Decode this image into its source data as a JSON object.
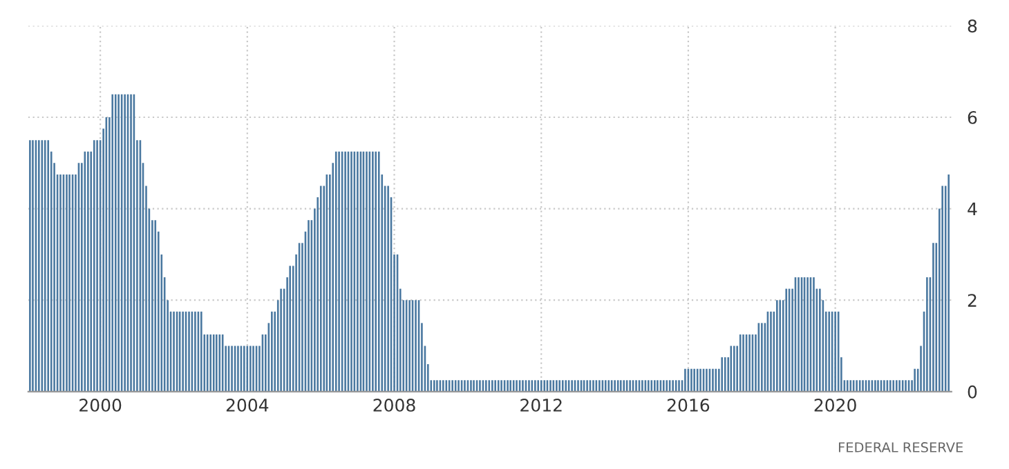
{
  "chart_data": {
    "type": "bar",
    "color": "#4a78a0",
    "x": [
      "1998-02",
      "1998-03",
      "1998-04",
      "1998-05",
      "1998-06",
      "1998-07",
      "1998-08",
      "1998-09",
      "1998-10",
      "1998-11",
      "1998-12",
      "1999-01",
      "1999-02",
      "1999-03",
      "1999-04",
      "1999-05",
      "1999-06",
      "1999-07",
      "1999-08",
      "1999-09",
      "1999-10",
      "1999-11",
      "1999-12",
      "2000-01",
      "2000-02",
      "2000-03",
      "2000-04",
      "2000-05",
      "2000-06",
      "2000-07",
      "2000-08",
      "2000-09",
      "2000-10",
      "2000-11",
      "2000-12",
      "2001-01",
      "2001-02",
      "2001-03",
      "2001-04",
      "2001-05",
      "2001-06",
      "2001-07",
      "2001-08",
      "2001-09",
      "2001-10",
      "2001-11",
      "2001-12",
      "2002-01",
      "2002-02",
      "2002-03",
      "2002-04",
      "2002-05",
      "2002-06",
      "2002-07",
      "2002-08",
      "2002-09",
      "2002-10",
      "2002-11",
      "2002-12",
      "2003-01",
      "2003-02",
      "2003-03",
      "2003-04",
      "2003-05",
      "2003-06",
      "2003-07",
      "2003-08",
      "2003-09",
      "2003-10",
      "2003-11",
      "2003-12",
      "2004-01",
      "2004-02",
      "2004-03",
      "2004-04",
      "2004-05",
      "2004-06",
      "2004-07",
      "2004-08",
      "2004-09",
      "2004-10",
      "2004-11",
      "2004-12",
      "2005-01",
      "2005-02",
      "2005-03",
      "2005-04",
      "2005-05",
      "2005-06",
      "2005-07",
      "2005-08",
      "2005-09",
      "2005-10",
      "2005-11",
      "2005-12",
      "2006-01",
      "2006-02",
      "2006-03",
      "2006-04",
      "2006-05",
      "2006-06",
      "2006-07",
      "2006-08",
      "2006-09",
      "2006-10",
      "2006-11",
      "2006-12",
      "2007-01",
      "2007-02",
      "2007-03",
      "2007-04",
      "2007-05",
      "2007-06",
      "2007-07",
      "2007-08",
      "2007-09",
      "2007-10",
      "2007-11",
      "2007-12",
      "2008-01",
      "2008-02",
      "2008-03",
      "2008-04",
      "2008-05",
      "2008-06",
      "2008-07",
      "2008-08",
      "2008-09",
      "2008-10",
      "2008-11",
      "2008-12",
      "2009-01",
      "2009-02",
      "2009-03",
      "2009-04",
      "2009-05",
      "2009-06",
      "2009-07",
      "2009-08",
      "2009-09",
      "2009-10",
      "2009-11",
      "2009-12",
      "2010-01",
      "2010-02",
      "2010-03",
      "2010-04",
      "2010-05",
      "2010-06",
      "2010-07",
      "2010-08",
      "2010-09",
      "2010-10",
      "2010-11",
      "2010-12",
      "2011-01",
      "2011-02",
      "2011-03",
      "2011-04",
      "2011-05",
      "2011-06",
      "2011-07",
      "2011-08",
      "2011-09",
      "2011-10",
      "2011-11",
      "2011-12",
      "2012-01",
      "2012-02",
      "2012-03",
      "2012-04",
      "2012-05",
      "2012-06",
      "2012-07",
      "2012-08",
      "2012-09",
      "2012-10",
      "2012-11",
      "2012-12",
      "2013-01",
      "2013-02",
      "2013-03",
      "2013-04",
      "2013-05",
      "2013-06",
      "2013-07",
      "2013-08",
      "2013-09",
      "2013-10",
      "2013-11",
      "2013-12",
      "2014-01",
      "2014-02",
      "2014-03",
      "2014-04",
      "2014-05",
      "2014-06",
      "2014-07",
      "2014-08",
      "2014-09",
      "2014-10",
      "2014-11",
      "2014-12",
      "2015-01",
      "2015-02",
      "2015-03",
      "2015-04",
      "2015-05",
      "2015-06",
      "2015-07",
      "2015-08",
      "2015-09",
      "2015-10",
      "2015-11",
      "2015-12",
      "2016-01",
      "2016-02",
      "2016-03",
      "2016-04",
      "2016-05",
      "2016-06",
      "2016-07",
      "2016-08",
      "2016-09",
      "2016-10",
      "2016-11",
      "2016-12",
      "2017-01",
      "2017-02",
      "2017-03",
      "2017-04",
      "2017-05",
      "2017-06",
      "2017-07",
      "2017-08",
      "2017-09",
      "2017-10",
      "2017-11",
      "2017-12",
      "2018-01",
      "2018-02",
      "2018-03",
      "2018-04",
      "2018-05",
      "2018-06",
      "2018-07",
      "2018-08",
      "2018-09",
      "2018-10",
      "2018-11",
      "2018-12",
      "2019-01",
      "2019-02",
      "2019-03",
      "2019-04",
      "2019-05",
      "2019-06",
      "2019-07",
      "2019-08",
      "2019-09",
      "2019-10",
      "2019-11",
      "2019-12",
      "2020-01",
      "2020-02",
      "2020-03",
      "2020-04",
      "2020-05",
      "2020-06",
      "2020-07",
      "2020-08",
      "2020-09",
      "2020-10",
      "2020-11",
      "2020-12",
      "2021-01",
      "2021-02",
      "2021-03",
      "2021-04",
      "2021-05",
      "2021-06",
      "2021-07",
      "2021-08",
      "2021-09",
      "2021-10",
      "2021-11",
      "2021-12",
      "2022-01",
      "2022-02",
      "2022-03",
      "2022-04",
      "2022-05",
      "2022-06",
      "2022-07",
      "2022-08",
      "2022-09",
      "2022-10",
      "2022-11",
      "2022-12",
      "2023-01",
      "2023-02"
    ],
    "values": [
      5.5,
      5.5,
      5.5,
      5.5,
      5.5,
      5.5,
      5.5,
      5.25,
      5.0,
      4.75,
      4.75,
      4.75,
      4.75,
      4.75,
      4.75,
      4.75,
      5.0,
      5.0,
      5.25,
      5.25,
      5.25,
      5.5,
      5.5,
      5.5,
      5.75,
      6.0,
      6.0,
      6.5,
      6.5,
      6.5,
      6.5,
      6.5,
      6.5,
      6.5,
      6.5,
      5.5,
      5.5,
      5.0,
      4.5,
      4.0,
      3.75,
      3.75,
      3.5,
      3.0,
      2.5,
      2.0,
      1.75,
      1.75,
      1.75,
      1.75,
      1.75,
      1.75,
      1.75,
      1.75,
      1.75,
      1.75,
      1.75,
      1.25,
      1.25,
      1.25,
      1.25,
      1.25,
      1.25,
      1.25,
      1.0,
      1.0,
      1.0,
      1.0,
      1.0,
      1.0,
      1.0,
      1.0,
      1.0,
      1.0,
      1.0,
      1.0,
      1.25,
      1.25,
      1.5,
      1.75,
      1.75,
      2.0,
      2.25,
      2.25,
      2.5,
      2.75,
      2.75,
      3.0,
      3.25,
      3.25,
      3.5,
      3.75,
      3.75,
      4.0,
      4.25,
      4.5,
      4.5,
      4.75,
      4.75,
      5.0,
      5.25,
      5.25,
      5.25,
      5.25,
      5.25,
      5.25,
      5.25,
      5.25,
      5.25,
      5.25,
      5.25,
      5.25,
      5.25,
      5.25,
      5.25,
      4.75,
      4.5,
      4.5,
      4.25,
      3.0,
      3.0,
      2.25,
      2.0,
      2.0,
      2.0,
      2.0,
      2.0,
      2.0,
      1.5,
      1.0,
      0.6,
      0.25,
      0.25,
      0.25,
      0.25,
      0.25,
      0.25,
      0.25,
      0.25,
      0.25,
      0.25,
      0.25,
      0.25,
      0.25,
      0.25,
      0.25,
      0.25,
      0.25,
      0.25,
      0.25,
      0.25,
      0.25,
      0.25,
      0.25,
      0.25,
      0.25,
      0.25,
      0.25,
      0.25,
      0.25,
      0.25,
      0.25,
      0.25,
      0.25,
      0.25,
      0.25,
      0.25,
      0.25,
      0.25,
      0.25,
      0.25,
      0.25,
      0.25,
      0.25,
      0.25,
      0.25,
      0.25,
      0.25,
      0.25,
      0.25,
      0.25,
      0.25,
      0.25,
      0.25,
      0.25,
      0.25,
      0.25,
      0.25,
      0.25,
      0.25,
      0.25,
      0.25,
      0.25,
      0.25,
      0.25,
      0.25,
      0.25,
      0.25,
      0.25,
      0.25,
      0.25,
      0.25,
      0.25,
      0.25,
      0.25,
      0.25,
      0.25,
      0.25,
      0.25,
      0.25,
      0.25,
      0.25,
      0.25,
      0.25,
      0.5,
      0.5,
      0.5,
      0.5,
      0.5,
      0.5,
      0.5,
      0.5,
      0.5,
      0.5,
      0.5,
      0.5,
      0.75,
      0.75,
      0.75,
      1.0,
      1.0,
      1.0,
      1.25,
      1.25,
      1.25,
      1.25,
      1.25,
      1.25,
      1.5,
      1.5,
      1.5,
      1.75,
      1.75,
      1.75,
      2.0,
      2.0,
      2.0,
      2.25,
      2.25,
      2.25,
      2.5,
      2.5,
      2.5,
      2.5,
      2.5,
      2.5,
      2.5,
      2.25,
      2.25,
      2.0,
      1.75,
      1.75,
      1.75,
      1.75,
      1.75,
      0.75,
      0.25,
      0.25,
      0.25,
      0.25,
      0.25,
      0.25,
      0.25,
      0.25,
      0.25,
      0.25,
      0.25,
      0.25,
      0.25,
      0.25,
      0.25,
      0.25,
      0.25,
      0.25,
      0.25,
      0.25,
      0.25,
      0.25,
      0.25,
      0.5,
      0.5,
      1.0,
      1.75,
      2.5,
      2.5,
      3.25,
      3.25,
      4.0,
      4.5,
      4.5,
      4.75
    ],
    "xlim": [
      "1998-01-15",
      "2023-03-01"
    ],
    "xticks": [
      "2000",
      "2004",
      "2008",
      "2012",
      "2016",
      "2020"
    ],
    "ylim": [
      0,
      8
    ],
    "yticks": [
      0,
      2,
      4,
      6,
      8
    ],
    "grid": true,
    "annotations": [
      "FEDERAL RESERVE"
    ]
  }
}
